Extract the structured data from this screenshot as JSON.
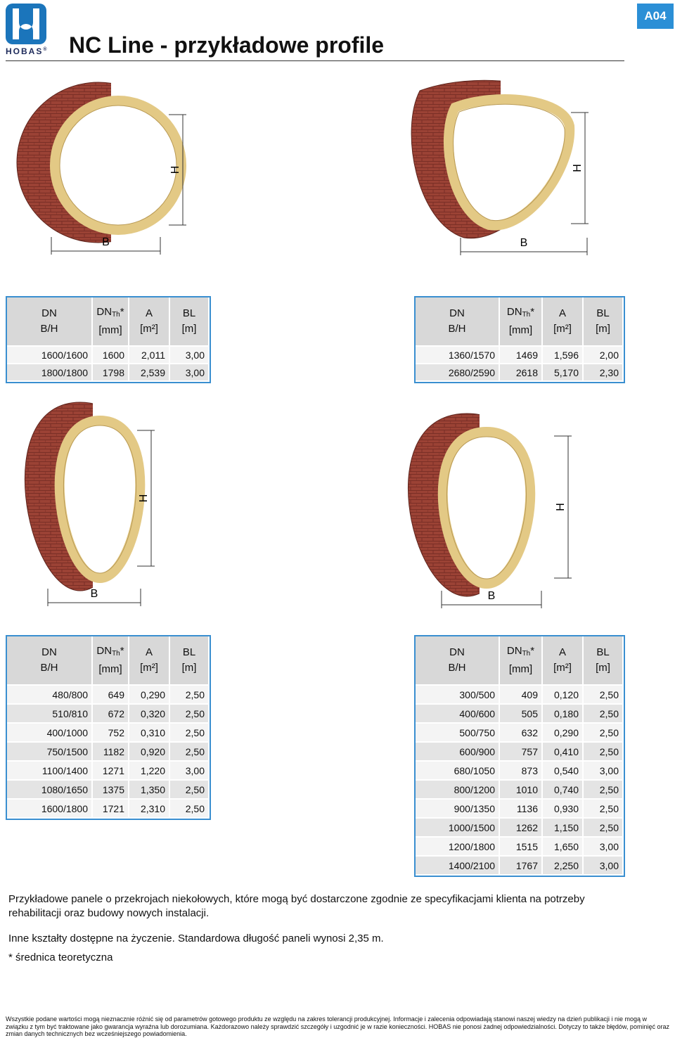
{
  "header": {
    "logo_text": "HOBAS",
    "logo_mark": "®",
    "badge": "A04",
    "title": "NC Line - przykładowe profile"
  },
  "profiles": [
    {
      "width_label": "B",
      "height_label": "H",
      "table": {
        "columns": [
          {
            "name": "DN",
            "unit": "B/H"
          },
          {
            "name": "DN",
            "sub": "Th",
            "mark": "*",
            "unit": "[mm]"
          },
          {
            "name": "A",
            "unit": "[m²]"
          },
          {
            "name": "BL",
            "unit": "[m]"
          }
        ],
        "rows": [
          [
            "1600/1600",
            "1600",
            "2,011",
            "3,00"
          ],
          [
            "1800/1800",
            "1798",
            "2,539",
            "3,00"
          ]
        ]
      }
    },
    {
      "width_label": "B",
      "height_label": "H",
      "table": {
        "columns": [
          {
            "name": "DN",
            "unit": "B/H"
          },
          {
            "name": "DN",
            "sub": "Th",
            "mark": "*",
            "unit": "[mm]"
          },
          {
            "name": "A",
            "unit": "[m²]"
          },
          {
            "name": "BL",
            "unit": "[m]"
          }
        ],
        "rows": [
          [
            "1360/1570",
            "1469",
            "1,596",
            "2,00"
          ],
          [
            "2680/2590",
            "2618",
            "5,170",
            "2,30"
          ]
        ]
      }
    },
    {
      "width_label": "B",
      "height_label": "H",
      "table": {
        "columns": [
          {
            "name": "DN",
            "unit": "B/H"
          },
          {
            "name": "DN",
            "sub": "Th",
            "mark": "*",
            "unit": "[mm]"
          },
          {
            "name": "A",
            "unit": "[m²]"
          },
          {
            "name": "BL",
            "unit": "[m]"
          }
        ],
        "rows": [
          [
            "480/800",
            "649",
            "0,290",
            "2,50"
          ],
          [
            "510/810",
            "672",
            "0,320",
            "2,50"
          ],
          [
            "400/1000",
            "752",
            "0,310",
            "2,50"
          ],
          [
            "750/1500",
            "1182",
            "0,920",
            "2,50"
          ],
          [
            "1100/1400",
            "1271",
            "1,220",
            "3,00"
          ],
          [
            "1080/1650",
            "1375",
            "1,350",
            "2,50"
          ],
          [
            "1600/1800",
            "1721",
            "2,310",
            "2,50"
          ]
        ]
      }
    },
    {
      "width_label": "B",
      "height_label": "H",
      "table": {
        "columns": [
          {
            "name": "DN",
            "unit": "B/H"
          },
          {
            "name": "DN",
            "sub": "Th",
            "mark": "*",
            "unit": "[mm]"
          },
          {
            "name": "A",
            "unit": "[m²]"
          },
          {
            "name": "BL",
            "unit": "[m]"
          }
        ],
        "rows": [
          [
            "300/500",
            "409",
            "0,120",
            "2,50"
          ],
          [
            "400/600",
            "505",
            "0,180",
            "2,50"
          ],
          [
            "500/750",
            "632",
            "0,290",
            "2,50"
          ],
          [
            "600/900",
            "757",
            "0,410",
            "2,50"
          ],
          [
            "680/1050",
            "873",
            "0,540",
            "3,00"
          ],
          [
            "800/1200",
            "1010",
            "0,740",
            "2,50"
          ],
          [
            "900/1350",
            "1136",
            "0,930",
            "2,50"
          ],
          [
            "1000/1500",
            "1262",
            "1,150",
            "2,50"
          ],
          [
            "1200/1800",
            "1515",
            "1,650",
            "3,00"
          ],
          [
            "1400/2100",
            "1767",
            "2,250",
            "3,00"
          ]
        ]
      }
    }
  ],
  "notes": [
    "Przykładowe panele o przekrojach niekołowych, które mogą być dostarczone zgodnie ze specyfikacjami klienta na potrzeby rehabilitacji oraz budowy nowych instalacji.",
    "Inne kształty dostępne na życzenie. Standardowa długość paneli wynosi 2,35 m.",
    "* średnica teoretyczna"
  ],
  "disclaimer": "Wszystkie podane wartości mogą nieznacznie różnić się od parametrów gotowego produktu ze względu na zakres tolerancji produkcyjnej. Informacje i zalecenia odpowiadają stanowi naszej wiedzy na dzień publikacji i nie mogą w związku z tym być traktowane jako gwarancja wyraźna lub dorozumiana. Każdorazowo należy sprawdzić szczegóły i uzgodnić je w razie konieczności. HOBAS nie ponosi żadnej odpowiedzialności. Dotyczy to także błędów, pominięć oraz zmian danych technicznych bez wcześniejszego powiadomienia."
}
